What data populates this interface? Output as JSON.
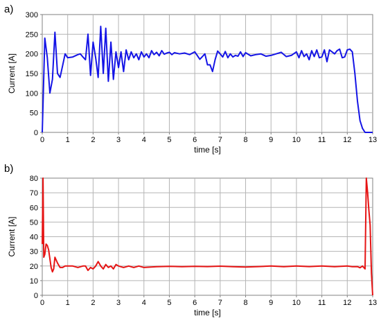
{
  "chart_data": [
    {
      "type": "line",
      "panel_label": "a)",
      "xlabel": "time [s]",
      "ylabel": "Current [A]",
      "xlim": [
        0,
        13
      ],
      "ylim": [
        0,
        300
      ],
      "xticks": [
        "0",
        "1",
        "2",
        "3",
        "4",
        "5",
        "6",
        "7",
        "8",
        "9",
        "10",
        "11",
        "12",
        "13"
      ],
      "yticks": [
        "0",
        "50",
        "100",
        "150",
        "200",
        "250",
        "300"
      ],
      "grid": true,
      "color": "#1414e6",
      "series": [
        {
          "x": [
            0,
            0.1,
            0.2,
            0.3,
            0.4,
            0.5,
            0.6,
            0.7,
            0.8,
            0.9,
            1.0,
            1.2,
            1.4,
            1.5,
            1.6,
            1.7,
            1.8,
            1.9,
            2.0,
            2.1,
            2.2,
            2.3,
            2.4,
            2.5,
            2.6,
            2.7,
            2.8,
            2.9,
            3.0,
            3.1,
            3.2,
            3.3,
            3.4,
            3.5,
            3.6,
            3.7,
            3.8,
            3.9,
            4.0,
            4.1,
            4.2,
            4.3,
            4.4,
            4.5,
            4.6,
            4.7,
            4.8,
            4.9,
            5.0,
            5.1,
            5.2,
            5.4,
            5.6,
            5.8,
            6.0,
            6.2,
            6.4,
            6.5,
            6.6,
            6.7,
            6.8,
            6.9,
            7.0,
            7.1,
            7.2,
            7.3,
            7.4,
            7.5,
            7.6,
            7.7,
            7.8,
            7.9,
            8.0,
            8.2,
            8.4,
            8.6,
            8.8,
            9.0,
            9.2,
            9.4,
            9.6,
            9.8,
            10.0,
            10.1,
            10.2,
            10.3,
            10.4,
            10.5,
            10.6,
            10.7,
            10.8,
            10.9,
            11.0,
            11.1,
            11.2,
            11.3,
            11.4,
            11.5,
            11.6,
            11.7,
            11.8,
            11.9,
            12.0,
            12.1,
            12.2,
            12.3,
            12.4,
            12.5,
            12.6,
            12.7,
            12.8,
            12.9,
            13.0
          ],
          "y": [
            0,
            240,
            190,
            100,
            135,
            255,
            150,
            140,
            170,
            200,
            190,
            192,
            198,
            200,
            192,
            185,
            250,
            145,
            230,
            190,
            140,
            270,
            150,
            265,
            130,
            230,
            135,
            205,
            165,
            205,
            155,
            210,
            185,
            205,
            190,
            200,
            185,
            205,
            192,
            200,
            190,
            208,
            198,
            204,
            195,
            208,
            199,
            202,
            204,
            198,
            203,
            200,
            202,
            198,
            205,
            186,
            200,
            172,
            172,
            155,
            185,
            207,
            200,
            192,
            206,
            190,
            200,
            192,
            196,
            194,
            205,
            193,
            203,
            195,
            198,
            200,
            194,
            196,
            200,
            204,
            193,
            196,
            205,
            190,
            208,
            193,
            200,
            185,
            208,
            193,
            210,
            190,
            192,
            210,
            180,
            210,
            205,
            200,
            208,
            212,
            190,
            192,
            210,
            212,
            205,
            150,
            80,
            30,
            10,
            0,
            0,
            0,
            0
          ]
        }
      ]
    },
    {
      "type": "line",
      "panel_label": "b)",
      "xlabel": "time [s]",
      "ylabel": "Current [A]",
      "xlim": [
        0,
        13
      ],
      "ylim": [
        0,
        80
      ],
      "xticks": [
        "0",
        "1",
        "2",
        "3",
        "4",
        "5",
        "6",
        "7",
        "8",
        "9",
        "10",
        "11",
        "12",
        "13"
      ],
      "yticks": [
        "0",
        "10",
        "20",
        "30",
        "40",
        "50",
        "60",
        "70",
        "80"
      ],
      "grid": true,
      "color": "#e61414",
      "series": [
        {
          "x": [
            0,
            0.03,
            0.06,
            0.1,
            0.15,
            0.2,
            0.25,
            0.3,
            0.35,
            0.4,
            0.45,
            0.5,
            0.6,
            0.7,
            0.8,
            0.9,
            1.0,
            1.2,
            1.4,
            1.6,
            1.7,
            1.8,
            1.9,
            2.0,
            2.1,
            2.2,
            2.3,
            2.4,
            2.5,
            2.6,
            2.7,
            2.8,
            2.9,
            3.0,
            3.2,
            3.4,
            3.6,
            3.8,
            4.0,
            4.5,
            5.0,
            5.5,
            6.0,
            6.5,
            7.0,
            7.5,
            8.0,
            8.5,
            9.0,
            9.5,
            10.0,
            10.5,
            11.0,
            11.5,
            12.0,
            12.2,
            12.4,
            12.5,
            12.6,
            12.7,
            12.75,
            12.8,
            12.85,
            12.9,
            12.95,
            13.0
          ],
          "y": [
            35,
            80,
            26,
            28,
            35,
            34,
            31,
            25,
            19,
            16,
            18,
            26,
            22,
            19,
            19,
            20,
            20,
            20,
            19,
            20,
            20,
            17,
            19,
            18,
            20,
            23,
            20,
            18,
            21,
            19,
            20,
            18,
            21,
            20,
            19,
            20,
            19,
            20,
            19,
            19.5,
            19.8,
            19.5,
            19.8,
            19.6,
            19.9,
            19.5,
            19.3,
            19.6,
            20,
            19.5,
            20,
            19.6,
            20,
            19.5,
            20,
            19.5,
            19.6,
            18.8,
            20,
            18,
            80,
            70,
            58,
            48,
            15,
            0
          ]
        }
      ]
    }
  ]
}
